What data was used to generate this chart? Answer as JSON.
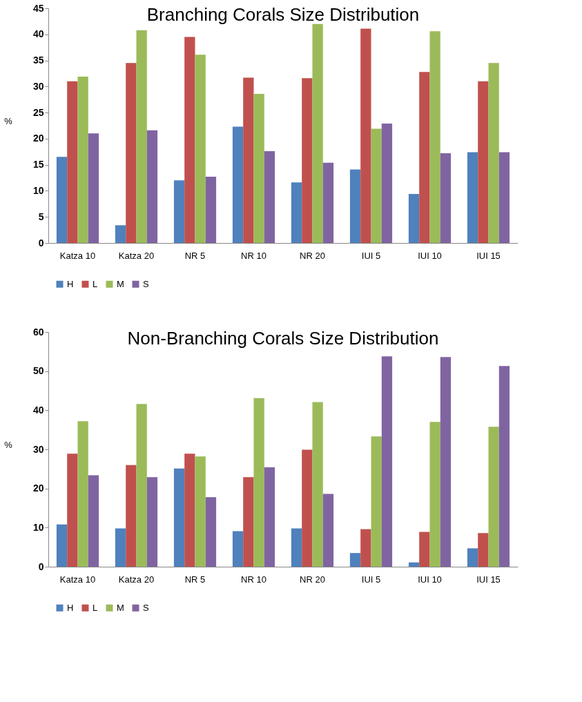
{
  "chart_data": [
    {
      "type": "bar",
      "title": "Branching Corals Size Distribution",
      "ylabel": "%",
      "categories": [
        "Katza 10",
        "Katza 20",
        "NR 5",
        "NR 10",
        "NR 20",
        "IUI 5",
        "IUI 10",
        "IUI 15"
      ],
      "series": [
        {
          "name": "H",
          "color": "#4f81bd",
          "values": [
            16.5,
            3.4,
            12.0,
            22.3,
            11.6,
            14.1,
            9.4,
            17.4
          ]
        },
        {
          "name": "L",
          "color": "#c0504d",
          "values": [
            31.0,
            34.5,
            39.5,
            31.7,
            31.6,
            41.1,
            32.8,
            31.0
          ]
        },
        {
          "name": "M",
          "color": "#9bbb59",
          "values": [
            31.9,
            40.8,
            36.1,
            28.6,
            42.0,
            21.9,
            40.6,
            34.5
          ]
        },
        {
          "name": "S",
          "color": "#8064a2",
          "values": [
            21.0,
            21.6,
            12.7,
            17.6,
            15.4,
            22.9,
            17.2,
            17.4
          ]
        }
      ],
      "ylim": [
        0,
        45
      ],
      "yticks": [
        0,
        5,
        10,
        15,
        20,
        25,
        30,
        35,
        40,
        45
      ],
      "grid": false,
      "legend": "bottom"
    },
    {
      "type": "bar",
      "title": "Non-Branching Corals Size Distribution",
      "ylabel": "%",
      "categories": [
        "Katza 10",
        "Katza 20",
        "NR 5",
        "NR 10",
        "NR 20",
        "IUI 5",
        "IUI 10",
        "IUI 15"
      ],
      "series": [
        {
          "name": "H",
          "color": "#4f81bd",
          "values": [
            10.8,
            9.8,
            25.1,
            9.1,
            9.8,
            3.5,
            1.1,
            4.7
          ]
        },
        {
          "name": "L",
          "color": "#c0504d",
          "values": [
            28.9,
            26.0,
            28.9,
            22.9,
            29.9,
            9.6,
            8.9,
            8.6
          ]
        },
        {
          "name": "M",
          "color": "#9bbb59",
          "values": [
            37.2,
            41.6,
            28.2,
            43.1,
            42.1,
            33.3,
            37.0,
            35.8
          ]
        },
        {
          "name": "S",
          "color": "#8064a2",
          "values": [
            23.4,
            22.9,
            17.8,
            25.4,
            18.6,
            53.8,
            53.6,
            51.3
          ]
        }
      ],
      "ylim": [
        0,
        60
      ],
      "yticks": [
        0,
        10,
        20,
        30,
        40,
        50,
        60
      ],
      "grid": false,
      "legend": "bottom"
    }
  ]
}
